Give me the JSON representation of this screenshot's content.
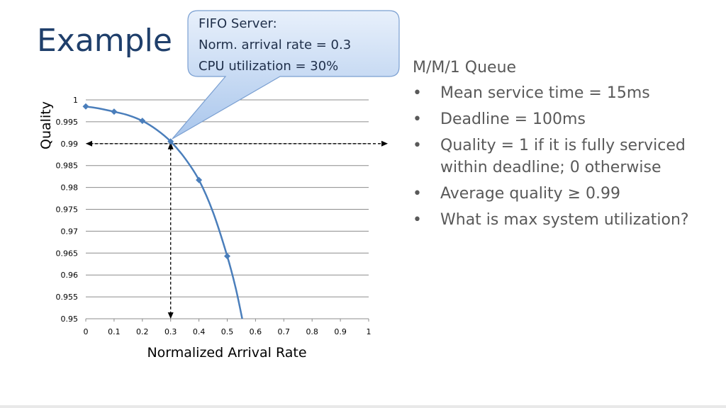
{
  "slide": {
    "title": "Example",
    "callout": {
      "line1": "FIFO Server:",
      "line2": "Norm. arrival rate = 0.3",
      "line3": "CPU utilization = 30%"
    },
    "bullets": {
      "heading": "M/M/1 Queue",
      "items": [
        "Mean service time = 15ms",
        "Deadline = 100ms",
        "Quality = 1 if it is fully serviced within deadline; 0 otherwise",
        "Average quality ≥ 0.99",
        "What is max system utilization?"
      ]
    }
  },
  "chart_data": {
    "type": "line",
    "xlabel": "Normalized Arrival Rate",
    "ylabel": "Quality",
    "xlim": [
      0,
      1
    ],
    "ylim": [
      0.95,
      1
    ],
    "x_ticks": [
      "0",
      "0.1",
      "0.2",
      "0.3",
      "0.4",
      "0.5",
      "0.6",
      "0.7",
      "0.8",
      "0.9",
      "1"
    ],
    "y_ticks": [
      "1",
      "0.995",
      "0.99",
      "0.985",
      "0.98",
      "0.975",
      "0.97",
      "0.965",
      "0.96",
      "0.955",
      "0.95"
    ],
    "grid": "horizontal",
    "series": [
      {
        "color": "#4a7ebb",
        "markers": {
          "x": [
            0,
            0.1,
            0.2,
            0.3,
            0.4,
            0.5
          ],
          "y": [
            0.9985,
            0.9973,
            0.9952,
            0.9905,
            0.9817,
            0.9643
          ]
        },
        "curve": {
          "x": [
            0,
            0.05,
            0.1,
            0.15,
            0.2,
            0.25,
            0.3,
            0.35,
            0.4,
            0.45,
            0.5,
            0.53,
            0.553
          ],
          "y": [
            0.9985,
            0.998,
            0.9973,
            0.9965,
            0.9952,
            0.9932,
            0.9905,
            0.9867,
            0.9817,
            0.9743,
            0.9643,
            0.957,
            0.95
          ]
        }
      }
    ],
    "reference_point": {
      "x": 0.3,
      "y": 0.99
    }
  }
}
